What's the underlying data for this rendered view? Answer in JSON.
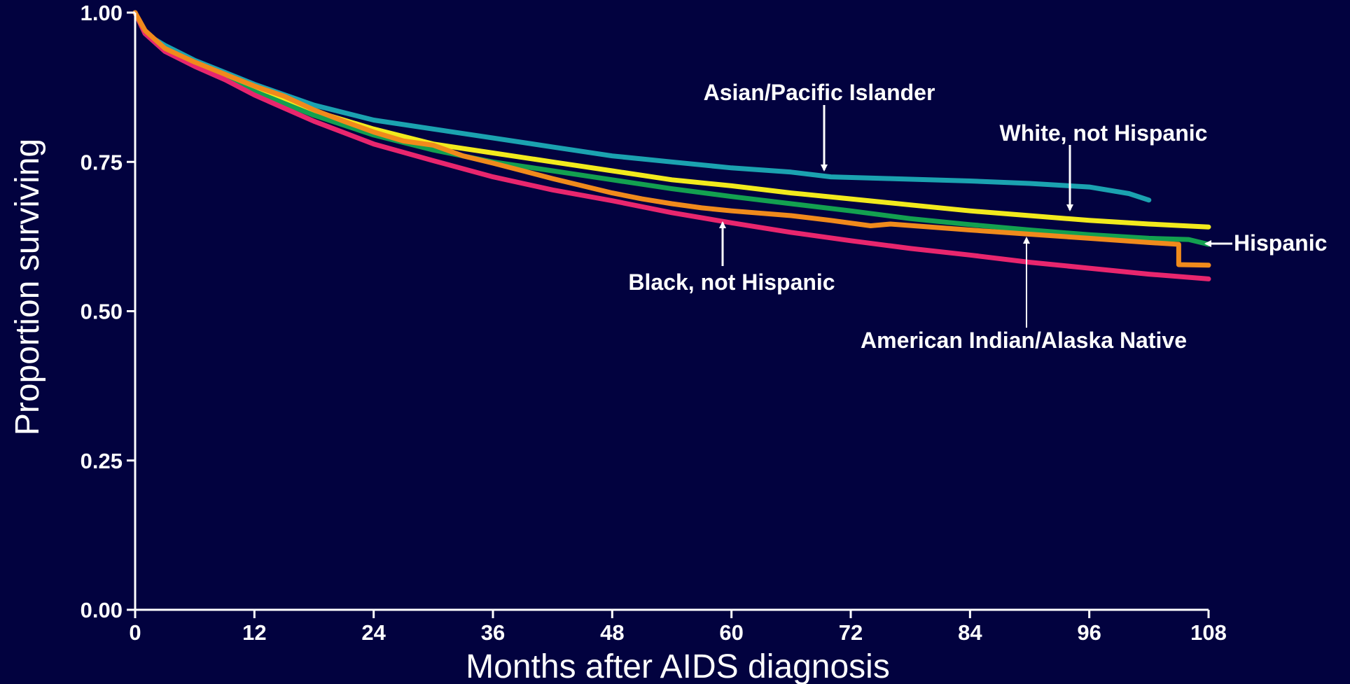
{
  "chart_data": {
    "type": "line",
    "xlabel": "Months after AIDS diagnosis",
    "ylabel": "Proportion surviving",
    "xlim": [
      0,
      108
    ],
    "ylim": [
      0,
      1
    ],
    "x_ticks": [
      "0",
      "12",
      "24",
      "36",
      "48",
      "60",
      "72",
      "84",
      "96",
      "108"
    ],
    "y_ticks": [
      "0.00",
      "0.25",
      "0.50",
      "0.75",
      "1.00"
    ],
    "grid": false,
    "series": [
      {
        "name": "Asian/Pacific Islander",
        "color": "#1ba2b0",
        "x": [
          0,
          1,
          3,
          6,
          9,
          12,
          18,
          24,
          30,
          36,
          42,
          48,
          54,
          60,
          66,
          70,
          76,
          84,
          90,
          96,
          100,
          102
        ],
        "y": [
          1.0,
          0.965,
          0.945,
          0.92,
          0.9,
          0.88,
          0.845,
          0.82,
          0.805,
          0.79,
          0.775,
          0.76,
          0.75,
          0.74,
          0.733,
          0.725,
          0.722,
          0.718,
          0.714,
          0.708,
          0.697,
          0.686
        ]
      },
      {
        "name": "White, not Hispanic",
        "color": "#f2ea1d",
        "x": [
          0,
          1,
          3,
          6,
          9,
          12,
          18,
          24,
          30,
          36,
          42,
          48,
          54,
          60,
          66,
          72,
          78,
          84,
          90,
          96,
          102,
          108
        ],
        "y": [
          1.0,
          0.965,
          0.94,
          0.915,
          0.895,
          0.875,
          0.835,
          0.805,
          0.78,
          0.765,
          0.75,
          0.735,
          0.72,
          0.71,
          0.698,
          0.688,
          0.678,
          0.668,
          0.66,
          0.652,
          0.646,
          0.641
        ]
      },
      {
        "name": "Hispanic",
        "color": "#13a050",
        "x": [
          0,
          1,
          3,
          6,
          9,
          12,
          18,
          24,
          30,
          36,
          42,
          48,
          54,
          60,
          66,
          72,
          78,
          84,
          90,
          96,
          102,
          106,
          108
        ],
        "y": [
          1.0,
          0.965,
          0.935,
          0.91,
          0.888,
          0.868,
          0.828,
          0.795,
          0.77,
          0.75,
          0.735,
          0.72,
          0.705,
          0.692,
          0.68,
          0.668,
          0.655,
          0.645,
          0.636,
          0.628,
          0.622,
          0.62,
          0.612
        ]
      },
      {
        "name": "Black, not Hispanic",
        "color": "#e8266e",
        "x": [
          0,
          1,
          3,
          6,
          9,
          12,
          18,
          24,
          30,
          36,
          42,
          48,
          54,
          60,
          66,
          72,
          78,
          84,
          90,
          96,
          102,
          108
        ],
        "y": [
          1.0,
          0.965,
          0.935,
          0.91,
          0.888,
          0.862,
          0.818,
          0.78,
          0.752,
          0.725,
          0.703,
          0.685,
          0.665,
          0.648,
          0.632,
          0.618,
          0.605,
          0.594,
          0.582,
          0.572,
          0.562,
          0.554
        ]
      },
      {
        "name": "American Indian/Alaska Native",
        "color": "#f08a1c",
        "x": [
          0,
          1,
          3,
          6,
          9,
          12,
          15,
          18,
          21,
          24,
          27,
          30,
          33,
          36,
          39,
          42,
          45,
          48,
          51,
          54,
          57,
          60,
          66,
          70,
          74,
          76,
          84,
          90,
          96,
          102,
          105,
          105,
          108
        ],
        "y": [
          1.0,
          0.97,
          0.94,
          0.917,
          0.897,
          0.877,
          0.86,
          0.837,
          0.818,
          0.8,
          0.785,
          0.778,
          0.76,
          0.748,
          0.735,
          0.722,
          0.71,
          0.698,
          0.688,
          0.68,
          0.673,
          0.668,
          0.66,
          0.652,
          0.643,
          0.646,
          0.636,
          0.629,
          0.622,
          0.615,
          0.612,
          0.578,
          0.577
        ]
      }
    ],
    "annotations": [
      {
        "series": "Asian/Pacific Islander",
        "text": "Asian/Pacific Islander"
      },
      {
        "series": "White, not Hispanic",
        "text": "White, not Hispanic"
      },
      {
        "series": "Hispanic",
        "text": "Hispanic"
      },
      {
        "series": "Black, not Hispanic",
        "text": "Black, not Hispanic"
      },
      {
        "series": "American Indian/Alaska Native",
        "text": "American Indian/Alaska Native"
      }
    ],
    "colors": {
      "background": "#02023f",
      "axis": "#ffffff",
      "text": "#ffffff"
    }
  }
}
